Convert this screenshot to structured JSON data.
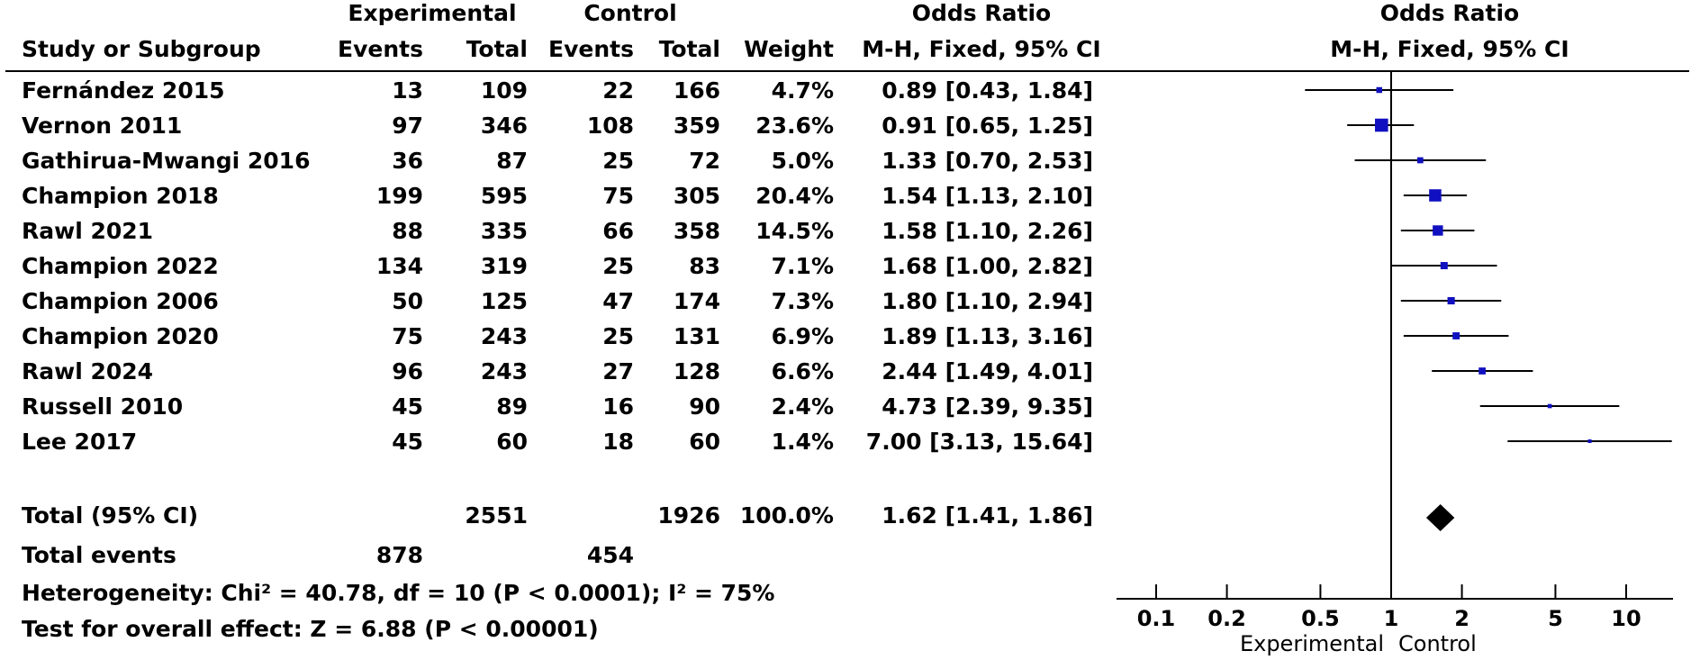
{
  "header": {
    "experimental": "Experimental",
    "control": "Control",
    "odds_ratio": "Odds Ratio",
    "odds_ratio_plot": "Odds Ratio",
    "study_or_subgroup": "Study or Subgroup",
    "events_exp": "Events",
    "total_exp": "Total",
    "events_ctl": "Events",
    "total_ctl": "Total",
    "weight": "Weight",
    "method": "M-H, Fixed, 95% CI",
    "method_plot": "M-H, Fixed, 95% CI"
  },
  "studies": [
    {
      "name": "Fernández 2015",
      "exp_events": "13",
      "exp_total": "109",
      "ctl_events": "22",
      "ctl_total": "166",
      "weight": "4.7%",
      "ci_text": "0.89 [0.43, 1.84]"
    },
    {
      "name": "Vernon 2011",
      "exp_events": "97",
      "exp_total": "346",
      "ctl_events": "108",
      "ctl_total": "359",
      "weight": "23.6%",
      "ci_text": "0.91 [0.65, 1.25]"
    },
    {
      "name": "Gathirua-Mwangi 2016",
      "exp_events": "36",
      "exp_total": "87",
      "ctl_events": "25",
      "ctl_total": "72",
      "weight": "5.0%",
      "ci_text": "1.33 [0.70, 2.53]"
    },
    {
      "name": "Champion 2018",
      "exp_events": "199",
      "exp_total": "595",
      "ctl_events": "75",
      "ctl_total": "305",
      "weight": "20.4%",
      "ci_text": "1.54 [1.13, 2.10]"
    },
    {
      "name": "Rawl 2021",
      "exp_events": "88",
      "exp_total": "335",
      "ctl_events": "66",
      "ctl_total": "358",
      "weight": "14.5%",
      "ci_text": "1.58 [1.10, 2.26]"
    },
    {
      "name": "Champion 2022",
      "exp_events": "134",
      "exp_total": "319",
      "ctl_events": "25",
      "ctl_total": "83",
      "weight": "7.1%",
      "ci_text": "1.68 [1.00, 2.82]"
    },
    {
      "name": "Champion 2006",
      "exp_events": "50",
      "exp_total": "125",
      "ctl_events": "47",
      "ctl_total": "174",
      "weight": "7.3%",
      "ci_text": "1.80 [1.10, 2.94]"
    },
    {
      "name": "Champion 2020",
      "exp_events": "75",
      "exp_total": "243",
      "ctl_events": "25",
      "ctl_total": "131",
      "weight": "6.9%",
      "ci_text": "1.89 [1.13, 3.16]"
    },
    {
      "name": "Rawl 2024",
      "exp_events": "96",
      "exp_total": "243",
      "ctl_events": "27",
      "ctl_total": "128",
      "weight": "6.6%",
      "ci_text": "2.44 [1.49, 4.01]"
    },
    {
      "name": "Russell 2010",
      "exp_events": "45",
      "exp_total": "89",
      "ctl_events": "16",
      "ctl_total": "90",
      "weight": "2.4%",
      "ci_text": "4.73 [2.39, 9.35]"
    },
    {
      "name": "Lee 2017",
      "exp_events": "45",
      "exp_total": "60",
      "ctl_events": "18",
      "ctl_total": "60",
      "weight": "1.4%",
      "ci_text": "7.00 [3.13, 15.64]"
    }
  ],
  "total": {
    "label": "Total (95% CI)",
    "exp_total": "2551",
    "ctl_total": "1926",
    "weight": "100.0%",
    "ci_text": "1.62 [1.41, 1.86]"
  },
  "total_events": {
    "label": "Total events",
    "exp": "878",
    "ctl": "454"
  },
  "heterogeneity": "Heterogeneity: Chi² = 40.78, df = 10 (P < 0.0001); I² = 75%",
  "overall_effect": "Test for overall effect: Z = 6.88 (P < 0.00001)",
  "axis": {
    "favours_left": "Experimental",
    "favours_right": "Control"
  },
  "chart_data": {
    "type": "forest",
    "scale": "log",
    "xlim": [
      0.07,
      15
    ],
    "ticks": [
      0.1,
      0.2,
      0.5,
      1,
      2,
      5,
      10
    ],
    "tick_labels": [
      "0.1",
      "0.2",
      "0.5",
      "1",
      "2",
      "5",
      "10"
    ],
    "reference_line": 1,
    "marker_color": "#1010c0",
    "points": [
      {
        "or": 0.89,
        "lo": 0.43,
        "hi": 1.84,
        "weight": 4.7
      },
      {
        "or": 0.91,
        "lo": 0.65,
        "hi": 1.25,
        "weight": 23.6
      },
      {
        "or": 1.33,
        "lo": 0.7,
        "hi": 2.53,
        "weight": 5.0
      },
      {
        "or": 1.54,
        "lo": 1.13,
        "hi": 2.1,
        "weight": 20.4
      },
      {
        "or": 1.58,
        "lo": 1.1,
        "hi": 2.26,
        "weight": 14.5
      },
      {
        "or": 1.68,
        "lo": 1.0,
        "hi": 2.82,
        "weight": 7.1
      },
      {
        "or": 1.8,
        "lo": 1.1,
        "hi": 2.94,
        "weight": 7.3
      },
      {
        "or": 1.89,
        "lo": 1.13,
        "hi": 3.16,
        "weight": 6.9
      },
      {
        "or": 2.44,
        "lo": 1.49,
        "hi": 4.01,
        "weight": 6.6
      },
      {
        "or": 4.73,
        "lo": 2.39,
        "hi": 9.35,
        "weight": 2.4
      },
      {
        "or": 7.0,
        "lo": 3.13,
        "hi": 15.64,
        "weight": 1.4
      }
    ],
    "pooled": {
      "or": 1.62,
      "lo": 1.41,
      "hi": 1.86
    }
  }
}
